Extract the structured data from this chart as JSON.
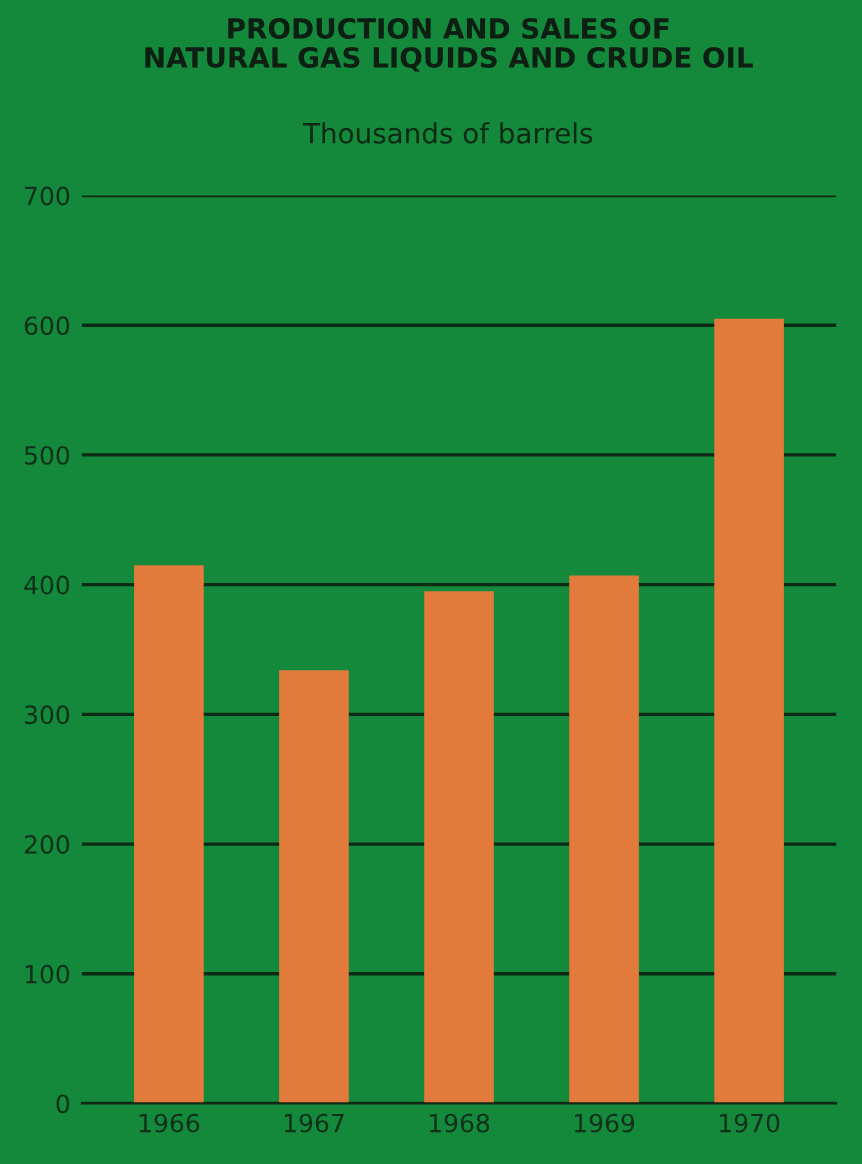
{
  "chart_data": {
    "type": "bar",
    "title": "PRODUCTION AND SALES OF\nNATURAL GAS LIQUIDS AND CRUDE OIL",
    "subtitle": "Thousands of barrels",
    "categories": [
      "1966",
      "1967",
      "1968",
      "1969",
      "1970"
    ],
    "values": [
      415,
      334,
      395,
      407,
      605
    ],
    "color": "#e27a3c",
    "ylim": [
      0,
      700
    ],
    "yticks": [
      0,
      100,
      200,
      300,
      400,
      500,
      600,
      700
    ],
    "grid": "y"
  }
}
